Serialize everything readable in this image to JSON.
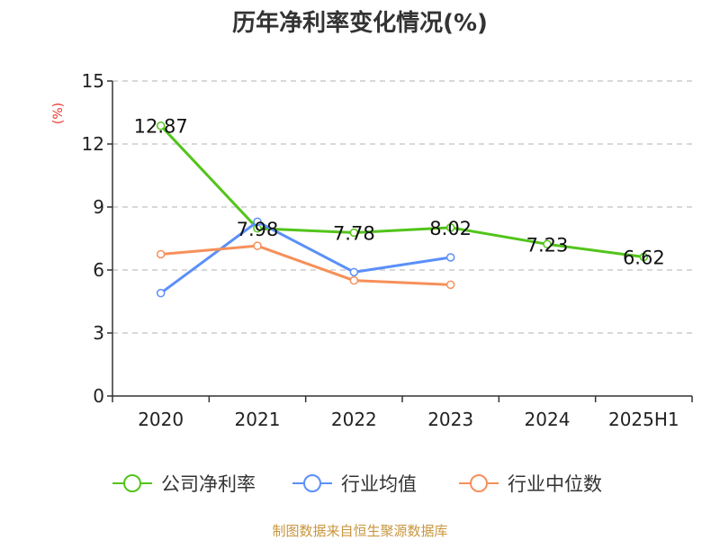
{
  "chart_data": {
    "type": "line",
    "title": "历年净利率变化情况(%)",
    "ylabel": "(%)",
    "categories": [
      "2020",
      "2021",
      "2022",
      "2023",
      "2024",
      "2025H1"
    ],
    "ylim": [
      0,
      15
    ],
    "yticks": [
      0,
      3,
      6,
      9,
      12,
      15
    ],
    "grid": true,
    "legend_position": "bottom",
    "series": [
      {
        "name": "公司净利率",
        "color": "#52c41a",
        "values": [
          12.87,
          7.98,
          7.78,
          8.02,
          7.23,
          6.62
        ],
        "labels": [
          "12.87",
          "7.98",
          "7.78",
          "8.02",
          "7.23",
          "6.62"
        ]
      },
      {
        "name": "行业均值",
        "color": "#5b8ff9",
        "values": [
          4.9,
          8.3,
          5.9,
          6.6,
          null,
          null
        ],
        "labels": []
      },
      {
        "name": "行业中位数",
        "color": "#f6905a",
        "values": [
          6.75,
          7.15,
          5.5,
          5.3,
          null,
          null
        ],
        "labels": []
      }
    ],
    "source": "制图数据来自恒生聚源数据库"
  }
}
